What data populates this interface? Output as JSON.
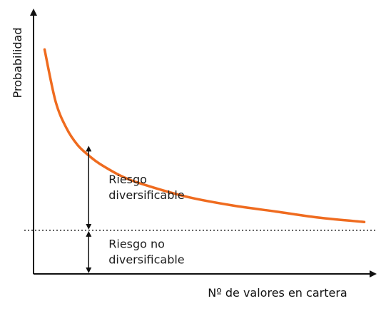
{
  "chart_data": {
    "type": "line",
    "xlabel": "Nº de valores en cartera",
    "ylabel": "Probabilidad",
    "series": [
      {
        "name": "",
        "color": "#ef6b1f",
        "shape": "hyperbolic-decay",
        "x": [
          1,
          2,
          3,
          4,
          5,
          6,
          8,
          10,
          14,
          18,
          22,
          26,
          30
        ],
        "y": [
          9.6,
          7.1,
          5.8,
          5.0,
          4.5,
          4.1,
          3.5,
          3.1,
          2.5,
          2.1,
          1.8,
          1.5,
          1.3
        ]
      }
    ],
    "reference_line": {
      "style": "dotted",
      "y": 0.9
    },
    "xlim": [
      0,
      31
    ],
    "ylim": [
      -1.2,
      11.5
    ],
    "annotations": [
      {
        "id": "diversifiable",
        "lines": [
          "Riesgo",
          "diversificable"
        ],
        "arrow_x": 5.0,
        "y_from": 0.9,
        "y_to": 5.0
      },
      {
        "id": "non-diversifiable",
        "lines": [
          "Riesgo no",
          "diversificable"
        ],
        "arrow_x": 5.0,
        "y_from": -1.2,
        "y_to": 0.9
      }
    ]
  }
}
